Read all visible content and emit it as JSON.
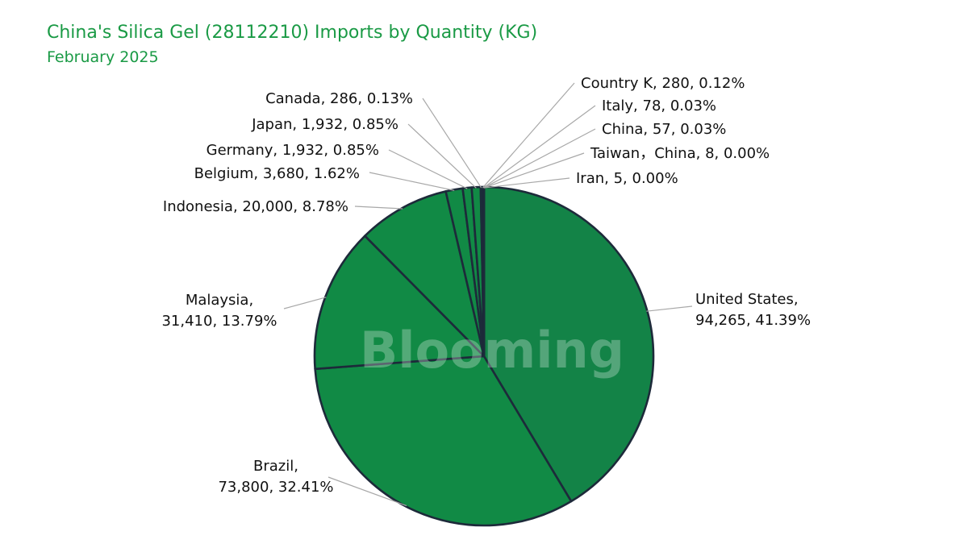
{
  "title": "China's Silica Gel (28112210) Imports by Quantity (KG)",
  "subtitle": "February 2025",
  "watermark": "Blooming",
  "colors": {
    "title": "#1a9a45",
    "slice_us": "#138347",
    "slice_main": "#118a45",
    "slice_border": "#1d2a3a",
    "leader": "#a8a8a8"
  },
  "chart_data": {
    "type": "pie",
    "title": "China's Silica Gel (28112210) Imports by Quantity (KG)",
    "subtitle": "February 2025",
    "unit": "KG",
    "start": "12 o'clock, clockwise",
    "slices": [
      {
        "label": "United States",
        "value": 94265,
        "value_text": "94,265",
        "percent": "41.39%"
      },
      {
        "label": "Brazil",
        "value": 73800,
        "value_text": "73,800",
        "percent": "32.41%"
      },
      {
        "label": "Malaysia",
        "value": 31410,
        "value_text": "31,410",
        "percent": "13.79%"
      },
      {
        "label": "Indonesia",
        "value": 20000,
        "value_text": "20,000",
        "percent": "8.78%"
      },
      {
        "label": "Belgium",
        "value": 3680,
        "value_text": "3,680",
        "percent": "1.62%"
      },
      {
        "label": "Germany",
        "value": 1932,
        "value_text": "1,932",
        "percent": "0.85%"
      },
      {
        "label": "Japan",
        "value": 1932,
        "value_text": "1,932",
        "percent": "0.85%"
      },
      {
        "label": "Canada",
        "value": 286,
        "value_text": "286",
        "percent": "0.13%"
      },
      {
        "label": "Country K",
        "value": 280,
        "value_text": "280",
        "percent": "0.12%"
      },
      {
        "label": "Italy",
        "value": 78,
        "value_text": "78",
        "percent": "0.03%"
      },
      {
        "label": "China",
        "value": 57,
        "value_text": "57",
        "percent": "0.03%"
      },
      {
        "label": "Taiwan，China",
        "value": 8,
        "value_text": "8",
        "percent": "0.00%"
      },
      {
        "label": "Iran",
        "value": 5,
        "value_text": "5",
        "percent": "0.00%"
      }
    ]
  }
}
